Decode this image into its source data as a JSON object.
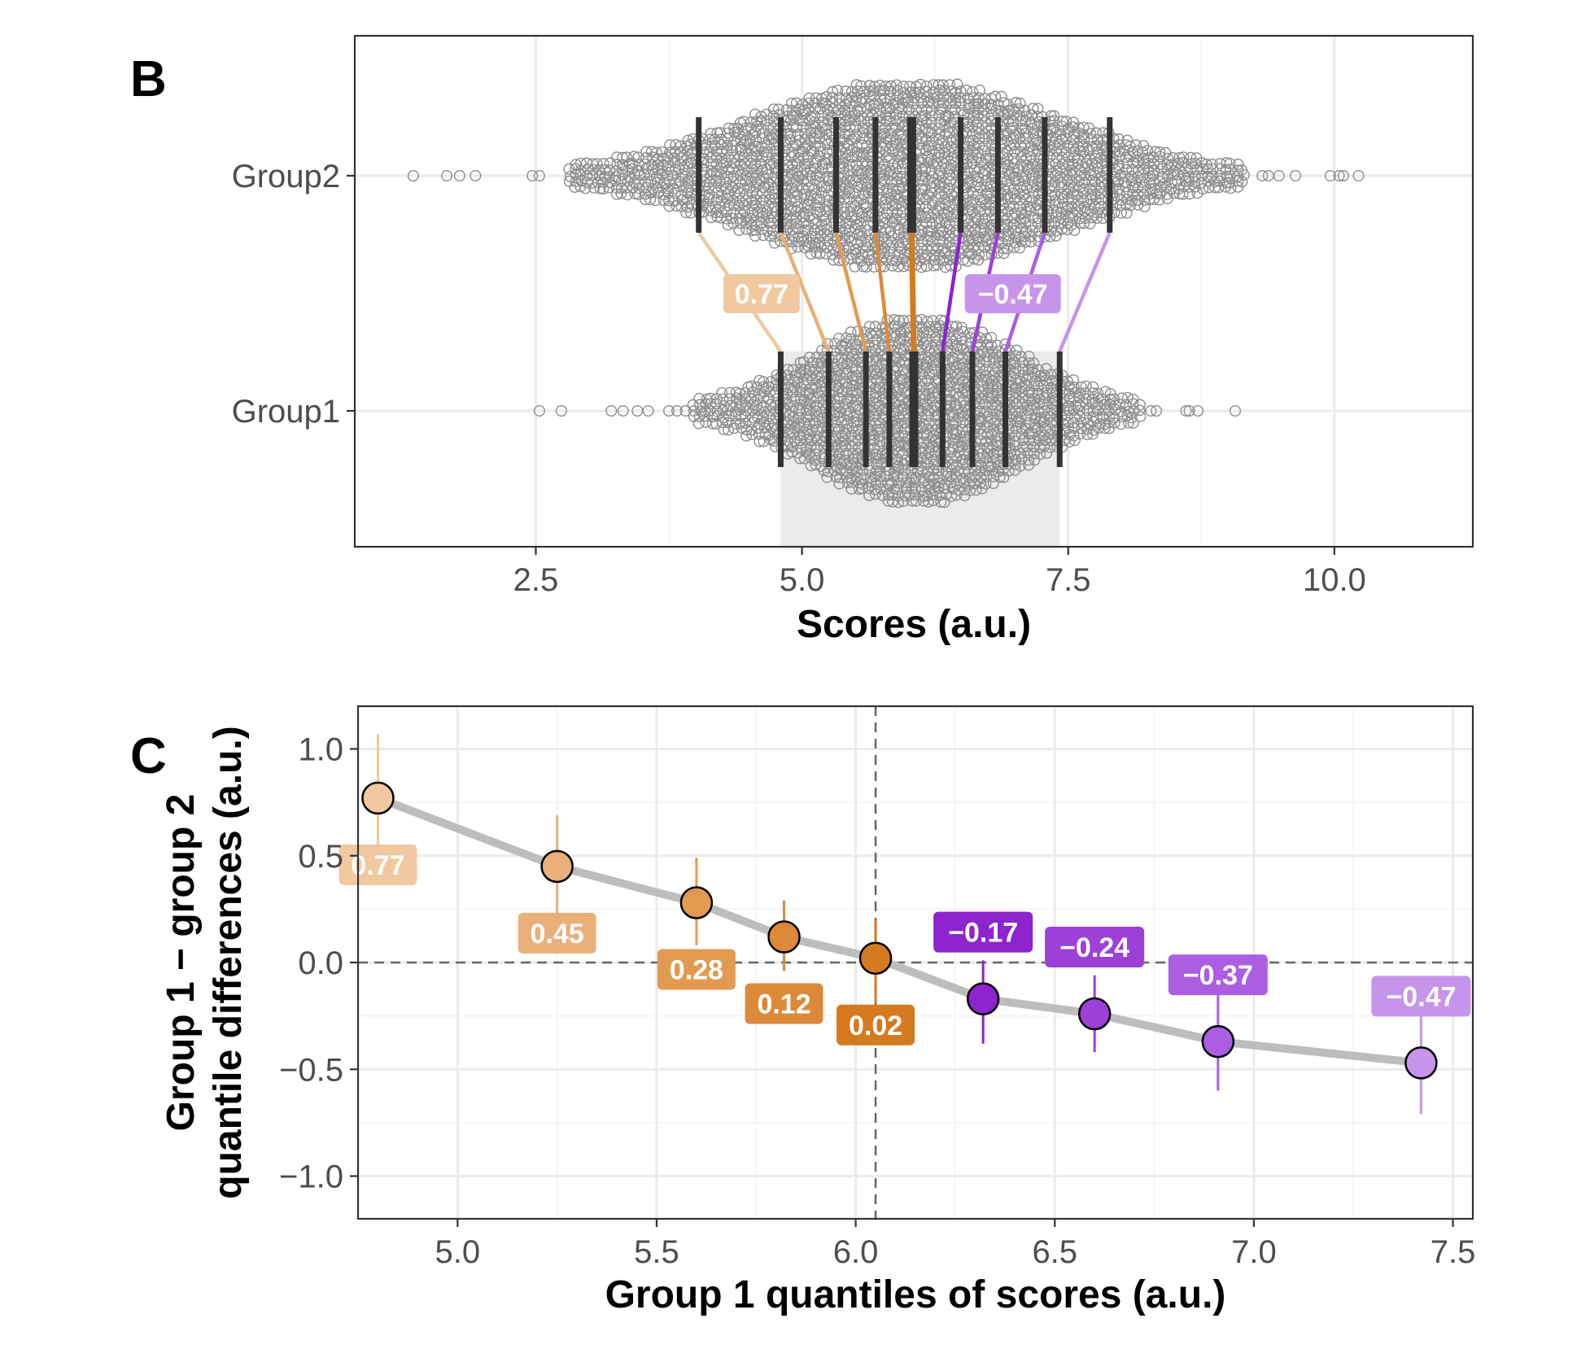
{
  "panel_b": {
    "letter": "B",
    "xlabel": "Scores (a.u.)",
    "colors": {
      "dots": "#8c8c8c",
      "deciles": "#333333",
      "shade": "#ebebeb"
    }
  },
  "panel_c": {
    "letter": "C",
    "xlabel": "Group 1 quantiles of scores (a.u.)",
    "ylabel_line1": "Group 1 − group 2",
    "ylabel_line2": "quantile differences (a.u.)",
    "colors": {
      "line": "#bdbdbd",
      "reference": "#666666"
    }
  },
  "chart_data": [
    {
      "panel": "B",
      "type": "scatter",
      "subtype": "beeswarm with decile markers and shift-function links",
      "xlabel": "Scores (a.u.)",
      "xlim": [
        0.8,
        11.3
      ],
      "xticks": [
        2.5,
        5.0,
        7.5,
        10.0
      ],
      "xtick_labels": [
        "2.5",
        "5.0",
        "7.5",
        "10.0"
      ],
      "categories": [
        "Group1",
        "Group2"
      ],
      "grid": true,
      "series": [
        {
          "name": "Group2",
          "range": [
            1.0,
            10.6
          ],
          "deciles": [
            4.03,
            4.8,
            5.32,
            5.69,
            6.03,
            6.49,
            6.84,
            7.28,
            7.89
          ]
        },
        {
          "name": "Group1",
          "range": [
            2.5,
            9.1
          ],
          "deciles": [
            4.8,
            5.25,
            5.6,
            5.82,
            6.05,
            6.32,
            6.6,
            6.91,
            7.42
          ]
        }
      ],
      "shaded_region": [
        4.8,
        7.42
      ],
      "labels": [
        {
          "text": "0.77",
          "color": "#f0c9a0"
        },
        {
          "text": "−0.47",
          "color": "#c794ec"
        }
      ]
    },
    {
      "panel": "C",
      "type": "scatter",
      "subtype": "shift function with confidence intervals",
      "xlabel": "Group 1 quantiles of scores (a.u.)",
      "ylabel": "Group 1 − group 2 quantile differences (a.u.)",
      "xlim": [
        4.75,
        7.55
      ],
      "ylim": [
        -1.2,
        1.2
      ],
      "xticks": [
        5.0,
        5.5,
        6.0,
        6.5,
        7.0,
        7.5
      ],
      "xtick_labels": [
        "5.0",
        "5.5",
        "6.0",
        "6.5",
        "7.0",
        "7.5"
      ],
      "yticks": [
        -1.0,
        -0.5,
        0.0,
        0.5,
        1.0
      ],
      "ytick_labels": [
        "−1.0",
        "−0.5",
        "0.0",
        "0.5",
        "1.0"
      ],
      "grid": true,
      "reference_lines": {
        "y": 0.0,
        "x": 6.05
      },
      "x": [
        4.8,
        5.25,
        5.6,
        5.82,
        6.05,
        6.32,
        6.6,
        6.91,
        7.42
      ],
      "y": [
        0.77,
        0.45,
        0.28,
        0.12,
        0.02,
        -0.17,
        -0.24,
        -0.37,
        -0.47
      ],
      "ci_low": [
        0.45,
        0.19,
        0.08,
        -0.04,
        -0.19,
        -0.38,
        -0.42,
        -0.6,
        -0.71
      ],
      "ci_high": [
        1.07,
        0.69,
        0.49,
        0.29,
        0.2,
        0.01,
        -0.06,
        -0.15,
        -0.23
      ],
      "labels": [
        "0.77",
        "0.45",
        "0.28",
        "0.12",
        "0.02",
        "−0.17",
        "−0.24",
        "−0.37",
        "−0.47"
      ],
      "colors": [
        "#f0c9a0",
        "#e9b079",
        "#e29a50",
        "#dc8a3a",
        "#d47a1f",
        "#8d24cd",
        "#9c40d8",
        "#ab5ee2",
        "#c794ec"
      ]
    }
  ]
}
